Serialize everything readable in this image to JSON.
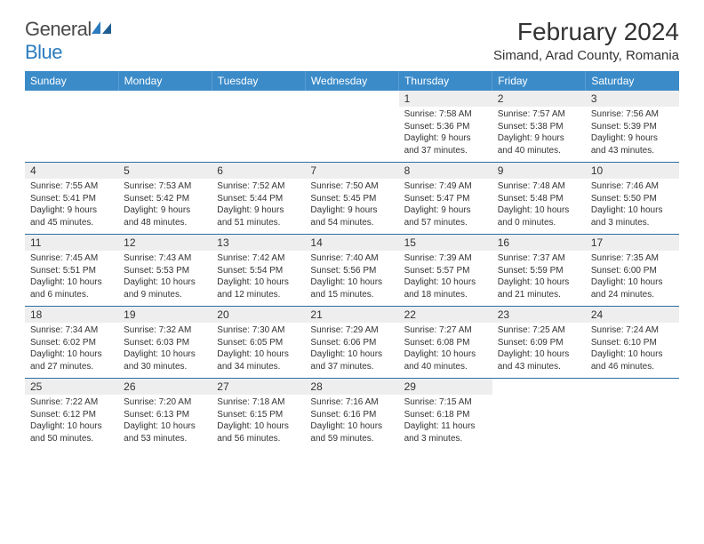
{
  "brand": {
    "word1": "General",
    "word2": "Blue"
  },
  "colors": {
    "header_bg": "#3b8bc9",
    "header_text": "#ffffff",
    "row_border": "#2a6ea5",
    "daynum_bg": "#eeeeee",
    "text": "#333333",
    "logo_gray": "#5a5a5a",
    "logo_blue": "#2b7bbf"
  },
  "title": "February 2024",
  "location": "Simand, Arad County, Romania",
  "weekdays": [
    "Sunday",
    "Monday",
    "Tuesday",
    "Wednesday",
    "Thursday",
    "Friday",
    "Saturday"
  ],
  "weeks": [
    [
      {
        "empty": true
      },
      {
        "empty": true
      },
      {
        "empty": true
      },
      {
        "empty": true
      },
      {
        "n": "1",
        "sr": "Sunrise: 7:58 AM",
        "ss": "Sunset: 5:36 PM",
        "dl": "Daylight: 9 hours and 37 minutes."
      },
      {
        "n": "2",
        "sr": "Sunrise: 7:57 AM",
        "ss": "Sunset: 5:38 PM",
        "dl": "Daylight: 9 hours and 40 minutes."
      },
      {
        "n": "3",
        "sr": "Sunrise: 7:56 AM",
        "ss": "Sunset: 5:39 PM",
        "dl": "Daylight: 9 hours and 43 minutes."
      }
    ],
    [
      {
        "n": "4",
        "sr": "Sunrise: 7:55 AM",
        "ss": "Sunset: 5:41 PM",
        "dl": "Daylight: 9 hours and 45 minutes."
      },
      {
        "n": "5",
        "sr": "Sunrise: 7:53 AM",
        "ss": "Sunset: 5:42 PM",
        "dl": "Daylight: 9 hours and 48 minutes."
      },
      {
        "n": "6",
        "sr": "Sunrise: 7:52 AM",
        "ss": "Sunset: 5:44 PM",
        "dl": "Daylight: 9 hours and 51 minutes."
      },
      {
        "n": "7",
        "sr": "Sunrise: 7:50 AM",
        "ss": "Sunset: 5:45 PM",
        "dl": "Daylight: 9 hours and 54 minutes."
      },
      {
        "n": "8",
        "sr": "Sunrise: 7:49 AM",
        "ss": "Sunset: 5:47 PM",
        "dl": "Daylight: 9 hours and 57 minutes."
      },
      {
        "n": "9",
        "sr": "Sunrise: 7:48 AM",
        "ss": "Sunset: 5:48 PM",
        "dl": "Daylight: 10 hours and 0 minutes."
      },
      {
        "n": "10",
        "sr": "Sunrise: 7:46 AM",
        "ss": "Sunset: 5:50 PM",
        "dl": "Daylight: 10 hours and 3 minutes."
      }
    ],
    [
      {
        "n": "11",
        "sr": "Sunrise: 7:45 AM",
        "ss": "Sunset: 5:51 PM",
        "dl": "Daylight: 10 hours and 6 minutes."
      },
      {
        "n": "12",
        "sr": "Sunrise: 7:43 AM",
        "ss": "Sunset: 5:53 PM",
        "dl": "Daylight: 10 hours and 9 minutes."
      },
      {
        "n": "13",
        "sr": "Sunrise: 7:42 AM",
        "ss": "Sunset: 5:54 PM",
        "dl": "Daylight: 10 hours and 12 minutes."
      },
      {
        "n": "14",
        "sr": "Sunrise: 7:40 AM",
        "ss": "Sunset: 5:56 PM",
        "dl": "Daylight: 10 hours and 15 minutes."
      },
      {
        "n": "15",
        "sr": "Sunrise: 7:39 AM",
        "ss": "Sunset: 5:57 PM",
        "dl": "Daylight: 10 hours and 18 minutes."
      },
      {
        "n": "16",
        "sr": "Sunrise: 7:37 AM",
        "ss": "Sunset: 5:59 PM",
        "dl": "Daylight: 10 hours and 21 minutes."
      },
      {
        "n": "17",
        "sr": "Sunrise: 7:35 AM",
        "ss": "Sunset: 6:00 PM",
        "dl": "Daylight: 10 hours and 24 minutes."
      }
    ],
    [
      {
        "n": "18",
        "sr": "Sunrise: 7:34 AM",
        "ss": "Sunset: 6:02 PM",
        "dl": "Daylight: 10 hours and 27 minutes."
      },
      {
        "n": "19",
        "sr": "Sunrise: 7:32 AM",
        "ss": "Sunset: 6:03 PM",
        "dl": "Daylight: 10 hours and 30 minutes."
      },
      {
        "n": "20",
        "sr": "Sunrise: 7:30 AM",
        "ss": "Sunset: 6:05 PM",
        "dl": "Daylight: 10 hours and 34 minutes."
      },
      {
        "n": "21",
        "sr": "Sunrise: 7:29 AM",
        "ss": "Sunset: 6:06 PM",
        "dl": "Daylight: 10 hours and 37 minutes."
      },
      {
        "n": "22",
        "sr": "Sunrise: 7:27 AM",
        "ss": "Sunset: 6:08 PM",
        "dl": "Daylight: 10 hours and 40 minutes."
      },
      {
        "n": "23",
        "sr": "Sunrise: 7:25 AM",
        "ss": "Sunset: 6:09 PM",
        "dl": "Daylight: 10 hours and 43 minutes."
      },
      {
        "n": "24",
        "sr": "Sunrise: 7:24 AM",
        "ss": "Sunset: 6:10 PM",
        "dl": "Daylight: 10 hours and 46 minutes."
      }
    ],
    [
      {
        "n": "25",
        "sr": "Sunrise: 7:22 AM",
        "ss": "Sunset: 6:12 PM",
        "dl": "Daylight: 10 hours and 50 minutes."
      },
      {
        "n": "26",
        "sr": "Sunrise: 7:20 AM",
        "ss": "Sunset: 6:13 PM",
        "dl": "Daylight: 10 hours and 53 minutes."
      },
      {
        "n": "27",
        "sr": "Sunrise: 7:18 AM",
        "ss": "Sunset: 6:15 PM",
        "dl": "Daylight: 10 hours and 56 minutes."
      },
      {
        "n": "28",
        "sr": "Sunrise: 7:16 AM",
        "ss": "Sunset: 6:16 PM",
        "dl": "Daylight: 10 hours and 59 minutes."
      },
      {
        "n": "29",
        "sr": "Sunrise: 7:15 AM",
        "ss": "Sunset: 6:18 PM",
        "dl": "Daylight: 11 hours and 3 minutes."
      },
      {
        "empty": true
      },
      {
        "empty": true
      }
    ]
  ]
}
